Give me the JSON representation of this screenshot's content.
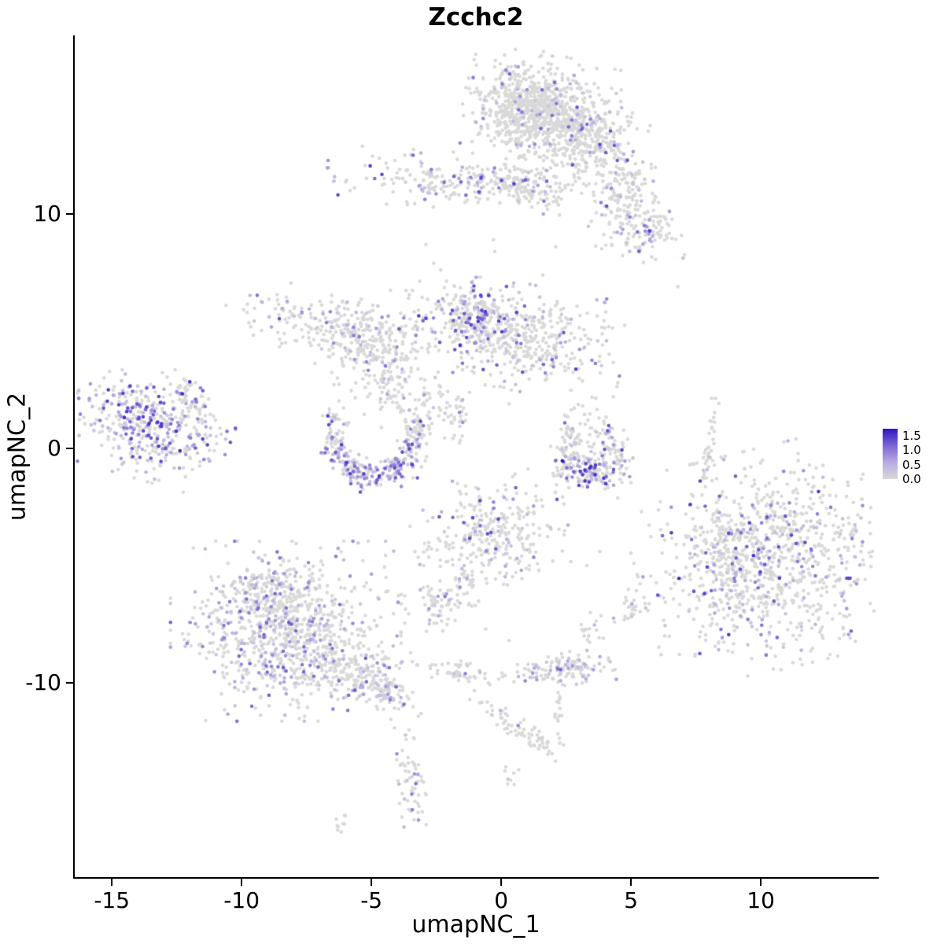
{
  "chart_data": {
    "type": "scatter",
    "title": "Zcchc2",
    "xlabel": "umapNC_1",
    "ylabel": "umapNC_2",
    "xlim": [
      -16.43,
      14.48
    ],
    "ylim": [
      -18.29,
      17.62
    ],
    "grid": false,
    "point_color_zero": "#d9d9d9",
    "x_tick_values": [
      -15,
      -10,
      -5,
      0,
      5,
      10
    ],
    "x_tick_labels": [
      "-15",
      "-10",
      "-5",
      "0",
      "5",
      "10"
    ],
    "y_tick_values": [
      -10,
      0,
      10
    ],
    "y_tick_labels": [
      "-10",
      "0",
      "10"
    ],
    "legend": {
      "position": "right",
      "vmin": 0,
      "vmax": 1.75,
      "tick_values": [
        1.5,
        1.0,
        0.5,
        0.0
      ],
      "tick_labels": [
        "1.5",
        "1.0",
        "0.5",
        "0.0"
      ],
      "gradient": [
        "#d9d9d9",
        "#b7abe3",
        "#7e64d2",
        "#2d16c4"
      ]
    },
    "clusters": [
      {
        "name": "top-main",
        "shape": "g",
        "cx": 1.7,
        "cy": 14.3,
        "rx": 1.35,
        "ry": 1.05,
        "rot": -15,
        "n": 620,
        "frac": 0.1,
        "vmax": 1.4
      },
      {
        "name": "top-main-core",
        "shape": "g",
        "cx": 1.1,
        "cy": 14.6,
        "rx": 0.75,
        "ry": 0.7,
        "rot": 0,
        "n": 300,
        "frac": 0.07,
        "vmax": 1.2
      },
      {
        "name": "top-east",
        "shape": "g",
        "cx": 3.4,
        "cy": 13.4,
        "rx": 0.9,
        "ry": 0.75,
        "rot": -30,
        "n": 200,
        "frac": 0.12,
        "vmax": 1.4
      },
      {
        "name": "top-tail",
        "shape": "g",
        "cx": 4.6,
        "cy": 11.6,
        "rx": 1.2,
        "ry": 0.55,
        "rot": -55,
        "n": 150,
        "frac": 0.14,
        "vmax": 1.4
      },
      {
        "name": "top-right-small",
        "shape": "g",
        "cx": 5.3,
        "cy": 9.4,
        "rx": 0.85,
        "ry": 0.55,
        "rot": -20,
        "n": 130,
        "frac": 0.18,
        "vmax": 1.5
      },
      {
        "name": "upper-band",
        "shape": "g",
        "cx": -1.2,
        "cy": 11.4,
        "rx": 2.3,
        "ry": 0.5,
        "rot": -4,
        "n": 260,
        "frac": 0.17,
        "vmax": 1.5
      },
      {
        "name": "upper-band-east",
        "shape": "g",
        "cx": 0.9,
        "cy": 11.0,
        "rx": 0.8,
        "ry": 0.45,
        "rot": -10,
        "n": 90,
        "frac": 0.15,
        "vmax": 1.2
      },
      {
        "name": "central",
        "shape": "g",
        "cx": 0.5,
        "cy": 4.8,
        "rx": 1.8,
        "ry": 0.95,
        "rot": -12,
        "n": 480,
        "frac": 0.18,
        "vmax": 1.5
      },
      {
        "name": "central-west",
        "shape": "g",
        "cx": -1.1,
        "cy": 5.5,
        "rx": 0.65,
        "ry": 0.75,
        "rot": 0,
        "n": 170,
        "frac": 0.32,
        "vmax": 1.6
      },
      {
        "name": "left-arc-west",
        "shape": "g",
        "cx": -6.6,
        "cy": 5.4,
        "rx": 1.4,
        "ry": 0.6,
        "rot": -12,
        "n": 210,
        "frac": 0.16,
        "vmax": 1.3
      },
      {
        "name": "left-arc-east",
        "shape": "g",
        "cx": -4.6,
        "cy": 4.2,
        "rx": 1.05,
        "ry": 0.85,
        "rot": 30,
        "n": 190,
        "frac": 0.14,
        "vmax": 1.3
      },
      {
        "name": "left-arc-drip",
        "shape": "g",
        "cx": -4.3,
        "cy": 2.6,
        "rx": 0.4,
        "ry": 0.7,
        "rot": 10,
        "n": 55,
        "frac": 0.1,
        "vmax": 1.0
      },
      {
        "name": "mid-trail",
        "shape": "g",
        "cx": -2.7,
        "cy": 1.9,
        "rx": 0.45,
        "ry": 0.75,
        "rot": 15,
        "n": 45,
        "frac": 0.1,
        "vmax": 1.0
      },
      {
        "name": "mid-trail2",
        "shape": "g",
        "cx": -1.7,
        "cy": 1.4,
        "rx": 0.2,
        "ry": 0.6,
        "rot": 0,
        "n": 30,
        "frac": 0.12,
        "vmax": 1.0
      },
      {
        "name": "far-left",
        "shape": "g",
        "cx": -13.4,
        "cy": 0.9,
        "rx": 1.35,
        "ry": 0.95,
        "rot": -18,
        "n": 430,
        "frac": 0.5,
        "vmax": 1.6
      },
      {
        "name": "far-left-tip",
        "shape": "g",
        "cx": -12.1,
        "cy": 2.3,
        "rx": 0.3,
        "ry": 0.5,
        "rot": 20,
        "n": 40,
        "frac": 0.2,
        "vmax": 1.0
      },
      {
        "name": "crescent",
        "shape": "a",
        "cx": -4.9,
        "cy": 0.7,
        "rx": 1.6,
        "ry": 1.9,
        "a0": 160,
        "a1": 385,
        "th": 0.28,
        "n": 340,
        "frac": 0.3,
        "vmax": 1.5
      },
      {
        "name": "v-left-arm",
        "shape": "g",
        "cx": 2.7,
        "cy": 0.2,
        "rx": 0.3,
        "ry": 0.9,
        "rot": -18,
        "n": 90,
        "frac": 0.2,
        "vmax": 1.3
      },
      {
        "name": "v-right-arm",
        "shape": "g",
        "cx": 4.2,
        "cy": 0.0,
        "rx": 0.32,
        "ry": 0.8,
        "rot": 22,
        "n": 80,
        "frac": 0.25,
        "vmax": 1.5
      },
      {
        "name": "v-bottom",
        "shape": "g",
        "cx": 3.5,
        "cy": -0.9,
        "rx": 0.55,
        "ry": 0.4,
        "rot": -10,
        "n": 140,
        "frac": 0.5,
        "vmax": 1.75
      },
      {
        "name": "east-strip",
        "shape": "g",
        "cx": 8.05,
        "cy": 0.2,
        "rx": 0.12,
        "ry": 0.95,
        "rot": -8,
        "n": 40,
        "frac": 0.05,
        "vmax": 0.8
      },
      {
        "name": "right-big",
        "shape": "g",
        "cx": 10.4,
        "cy": -4.7,
        "rx": 2.15,
        "ry": 1.95,
        "rot": 15,
        "n": 950,
        "frac": 0.22,
        "vmax": 1.6
      },
      {
        "name": "right-big-west-lobe",
        "shape": "g",
        "cx": 8.6,
        "cy": -4.4,
        "rx": 0.7,
        "ry": 0.9,
        "rot": 0,
        "n": 120,
        "frac": 0.25,
        "vmax": 1.5
      },
      {
        "name": "center-bottom",
        "shape": "g",
        "cx": -0.4,
        "cy": -3.7,
        "rx": 1.25,
        "ry": 1.05,
        "rot": 10,
        "n": 300,
        "frac": 0.17,
        "vmax": 1.4
      },
      {
        "name": "center-bottom-drip",
        "shape": "g",
        "cx": -1.3,
        "cy": -5.7,
        "rx": 0.25,
        "ry": 0.45,
        "rot": 0,
        "n": 25,
        "frac": 0.1,
        "vmax": 1.0
      },
      {
        "name": "small-mid-blob",
        "shape": "g",
        "cx": -2.4,
        "cy": -6.6,
        "rx": 0.55,
        "ry": 0.5,
        "rot": 0,
        "n": 70,
        "frac": 0.12,
        "vmax": 1.2
      },
      {
        "name": "bottom-left-main",
        "shape": "g",
        "cx": -8.3,
        "cy": -7.8,
        "rx": 1.85,
        "ry": 1.6,
        "rot": 0,
        "n": 880,
        "frac": 0.27,
        "vmax": 1.25
      },
      {
        "name": "bottom-left-top-lobe",
        "shape": "g",
        "cx": -8.9,
        "cy": -5.9,
        "rx": 0.7,
        "ry": 0.6,
        "rot": 0,
        "n": 110,
        "frac": 0.2,
        "vmax": 1.0
      },
      {
        "name": "bottom-left-tail",
        "shape": "g",
        "cx": -5.7,
        "cy": -9.6,
        "rx": 1.3,
        "ry": 0.6,
        "rot": -33,
        "n": 210,
        "frac": 0.2,
        "vmax": 1.2
      },
      {
        "name": "tail-end",
        "shape": "g",
        "cx": -4.4,
        "cy": -10.4,
        "rx": 0.55,
        "ry": 0.3,
        "rot": -20,
        "n": 55,
        "frac": 0.15,
        "vmax": 1.0
      },
      {
        "name": "mid-bottom-strip",
        "shape": "g",
        "cx": -1.5,
        "cy": -9.6,
        "rx": 0.9,
        "ry": 0.25,
        "rot": -8,
        "n": 60,
        "frac": 0.08,
        "vmax": 1.0
      },
      {
        "name": "bottom-mid",
        "shape": "g",
        "cx": 2.4,
        "cy": -9.4,
        "rx": 0.85,
        "ry": 0.3,
        "rot": 4,
        "n": 130,
        "frac": 0.25,
        "vmax": 1.3
      },
      {
        "name": "below-strip",
        "shape": "g",
        "cx": 2.2,
        "cy": -11.3,
        "rx": 0.12,
        "ry": 0.85,
        "rot": 0,
        "n": 22,
        "frac": 0.08,
        "vmax": 1.0
      },
      {
        "name": "diag-strip",
        "shape": "g",
        "cx": 0.6,
        "cy": -11.9,
        "rx": 0.95,
        "ry": 0.22,
        "rot": -35,
        "n": 55,
        "frac": 0.06,
        "vmax": 1.0
      },
      {
        "name": "tiny-neck",
        "shape": "g",
        "cx": 1.5,
        "cy": -12.4,
        "rx": 0.3,
        "ry": 0.25,
        "rot": 0,
        "n": 14,
        "frac": 0.1,
        "vmax": 0.9
      },
      {
        "name": "bottom-column",
        "shape": "g",
        "cx": -3.5,
        "cy": -14.2,
        "rx": 0.28,
        "ry": 1.0,
        "rot": 5,
        "n": 60,
        "frac": 0.22,
        "vmax": 1.3
      },
      {
        "name": "bottom-tiny-left",
        "shape": "g",
        "cx": -6.0,
        "cy": -16.0,
        "rx": 0.35,
        "ry": 0.28,
        "rot": 0,
        "n": 10,
        "frac": 0.0,
        "vmax": 0
      },
      {
        "name": "bottom-tiny-mid",
        "shape": "g",
        "cx": 0.4,
        "cy": -14.0,
        "rx": 0.18,
        "ry": 0.3,
        "rot": 0,
        "n": 8,
        "frac": 0.2,
        "vmax": 1.2
      },
      {
        "name": "right-mid-small",
        "shape": "g",
        "cx": 5.0,
        "cy": -6.9,
        "rx": 0.28,
        "ry": 0.42,
        "rot": 0,
        "n": 26,
        "frac": 0.15,
        "vmax": 1.2
      },
      {
        "name": "right-mid-small2",
        "shape": "g",
        "cx": 3.5,
        "cy": -7.7,
        "rx": 0.22,
        "ry": 0.42,
        "rot": 0,
        "n": 18,
        "frac": 0.05,
        "vmax": 0.8
      },
      {
        "name": "singles",
        "shape": "p",
        "n": 20,
        "frac": 0.0,
        "vmax": 0,
        "pts": [
          [
            -10.6,
            6.1
          ],
          [
            -2.9,
            8.7
          ],
          [
            -2.6,
            7.9
          ],
          [
            6.8,
            6.9
          ],
          [
            -0.3,
            8.9
          ],
          [
            -0.25,
            8.4
          ],
          [
            3.3,
            -5.0
          ],
          [
            3.8,
            -4.4
          ],
          [
            -1.0,
            -6.7
          ],
          [
            -0.6,
            -7.7
          ],
          [
            0.3,
            -8.2
          ],
          [
            1.6,
            7.4
          ],
          [
            6.3,
            -8.0
          ],
          [
            -11.9,
            -0.9
          ],
          [
            0.1,
            2.6
          ],
          [
            0.3,
            1.9
          ],
          [
            -0.8,
            7.3
          ],
          [
            -0.4,
            6.8
          ],
          [
            2.1,
            8.6
          ],
          [
            5.9,
            9.9
          ]
        ]
      }
    ]
  }
}
